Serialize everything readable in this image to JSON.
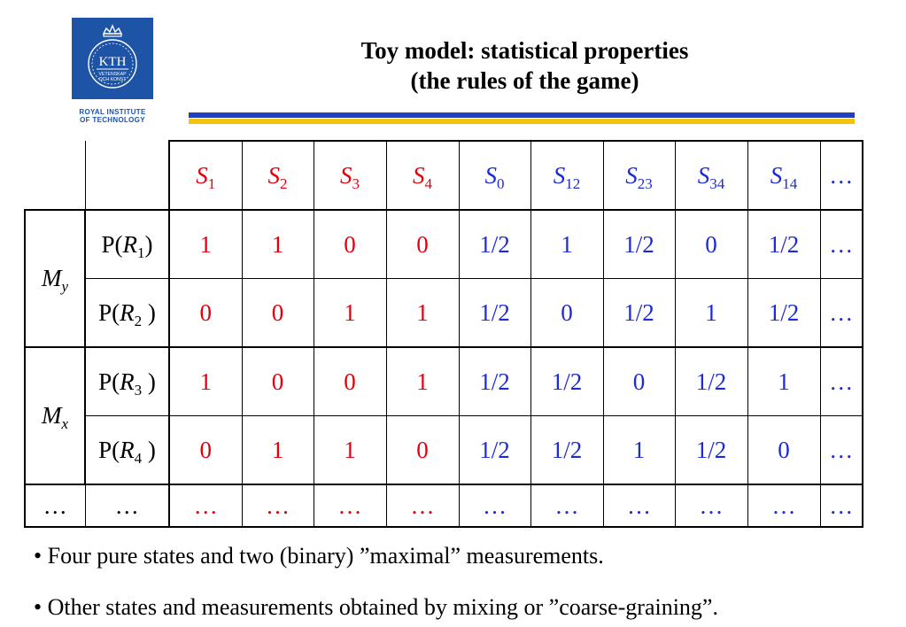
{
  "logo": {
    "text": "KTH",
    "subtext_1": "VETENSKAP",
    "subtext_2": "OCH KONST",
    "caption_1": "ROYAL INSTITUTE",
    "caption_2": "OF TECHNOLOGY"
  },
  "title": {
    "line1": "Toy model: statistical properties",
    "line2": "(the rules of the game)"
  },
  "colors": {
    "red": "#e3000f",
    "blue": "#1c2bd6",
    "kth_blue": "#1d54a5",
    "rule_blue": "#1f3fbf",
    "rule_yellow": "#f2c40d"
  },
  "table": {
    "states": [
      {
        "base": "S",
        "sub": "1"
      },
      {
        "base": "S",
        "sub": "2"
      },
      {
        "base": "S",
        "sub": "3"
      },
      {
        "base": "S",
        "sub": "4"
      },
      {
        "base": "S",
        "sub": "0"
      },
      {
        "base": "S",
        "sub": "12"
      },
      {
        "base": "S",
        "sub": "23"
      },
      {
        "base": "S",
        "sub": "34"
      },
      {
        "base": "S",
        "sub": "14"
      }
    ],
    "ellipsis": "…",
    "groups": [
      {
        "base": "M",
        "sub": "y"
      },
      {
        "base": "M",
        "sub": "x"
      }
    ],
    "row_labels": [
      {
        "prefix": "P(",
        "base": "R",
        "sub": "1",
        "suffix": ")"
      },
      {
        "prefix": "P(",
        "base": "R",
        "sub": "2",
        "suffix": " )"
      },
      {
        "prefix": "P(",
        "base": "R",
        "sub": "3",
        "suffix": " )"
      },
      {
        "prefix": "P(",
        "base": "R",
        "sub": "4",
        "suffix": " )"
      }
    ],
    "rows": [
      [
        "1",
        "1",
        "0",
        "0",
        "1/2",
        "1",
        "1/2",
        "0",
        "1/2"
      ],
      [
        "0",
        "0",
        "1",
        "1",
        "1/2",
        "0",
        "1/2",
        "1",
        "1/2"
      ],
      [
        "1",
        "0",
        "0",
        "1",
        "1/2",
        "1/2",
        "0",
        "1/2",
        "1"
      ],
      [
        "0",
        "1",
        "1",
        "0",
        "1/2",
        "1/2",
        "1",
        "1/2",
        "0"
      ]
    ]
  },
  "bullets": [
    "• Four pure states  and two (binary) ”maximal” measurements.",
    "• Other states and measurements obtained by mixing or ”coarse-graining”."
  ]
}
